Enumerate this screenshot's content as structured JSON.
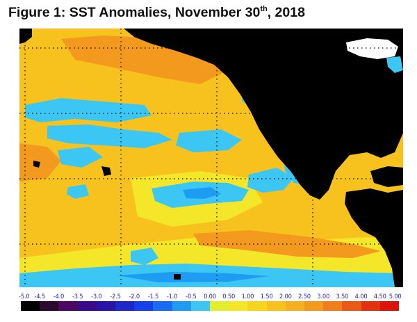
{
  "title": {
    "prefix": "Figure 1: SST Anomalies, November 30",
    "ordinal": "th",
    "suffix": ", 2018"
  },
  "legend": {
    "ticks": [
      "-5.0",
      "-4.5",
      "-4.0",
      "-3.5",
      "-3.0",
      "-2.5",
      "-2.0",
      "-1.5",
      "-1.0",
      "-0.5",
      "0.00",
      "0.50",
      "1.00",
      "1.50",
      "2.00",
      "2.50",
      "3.00",
      "3.50",
      "4.00",
      "4.50",
      "5.00"
    ],
    "colors": [
      "#000000",
      "#2b0a2e",
      "#4a0a63",
      "#3a0a8c",
      "#2a14a8",
      "#1e28c8",
      "#1640e8",
      "#1a6cf2",
      "#1e9cf4",
      "#3cc6f4",
      "#e2ee30",
      "#f4e628",
      "#f6d420",
      "#f7c21e",
      "#f5b020",
      "#f39a1e",
      "#f07e1c",
      "#ea5a16",
      "#e43210",
      "#dc140c"
    ]
  },
  "map": {
    "colors": {
      "land": "#000000",
      "ocean_warm": "#f7c21e",
      "ocean_very_warm": "#f39a1e",
      "ocean_mild": "#f4e628",
      "ocean_cool": "#3cc6f4",
      "ocean_cold": "#1e9cf4",
      "ice": "#ffffff",
      "background": "#ffffff"
    }
  }
}
